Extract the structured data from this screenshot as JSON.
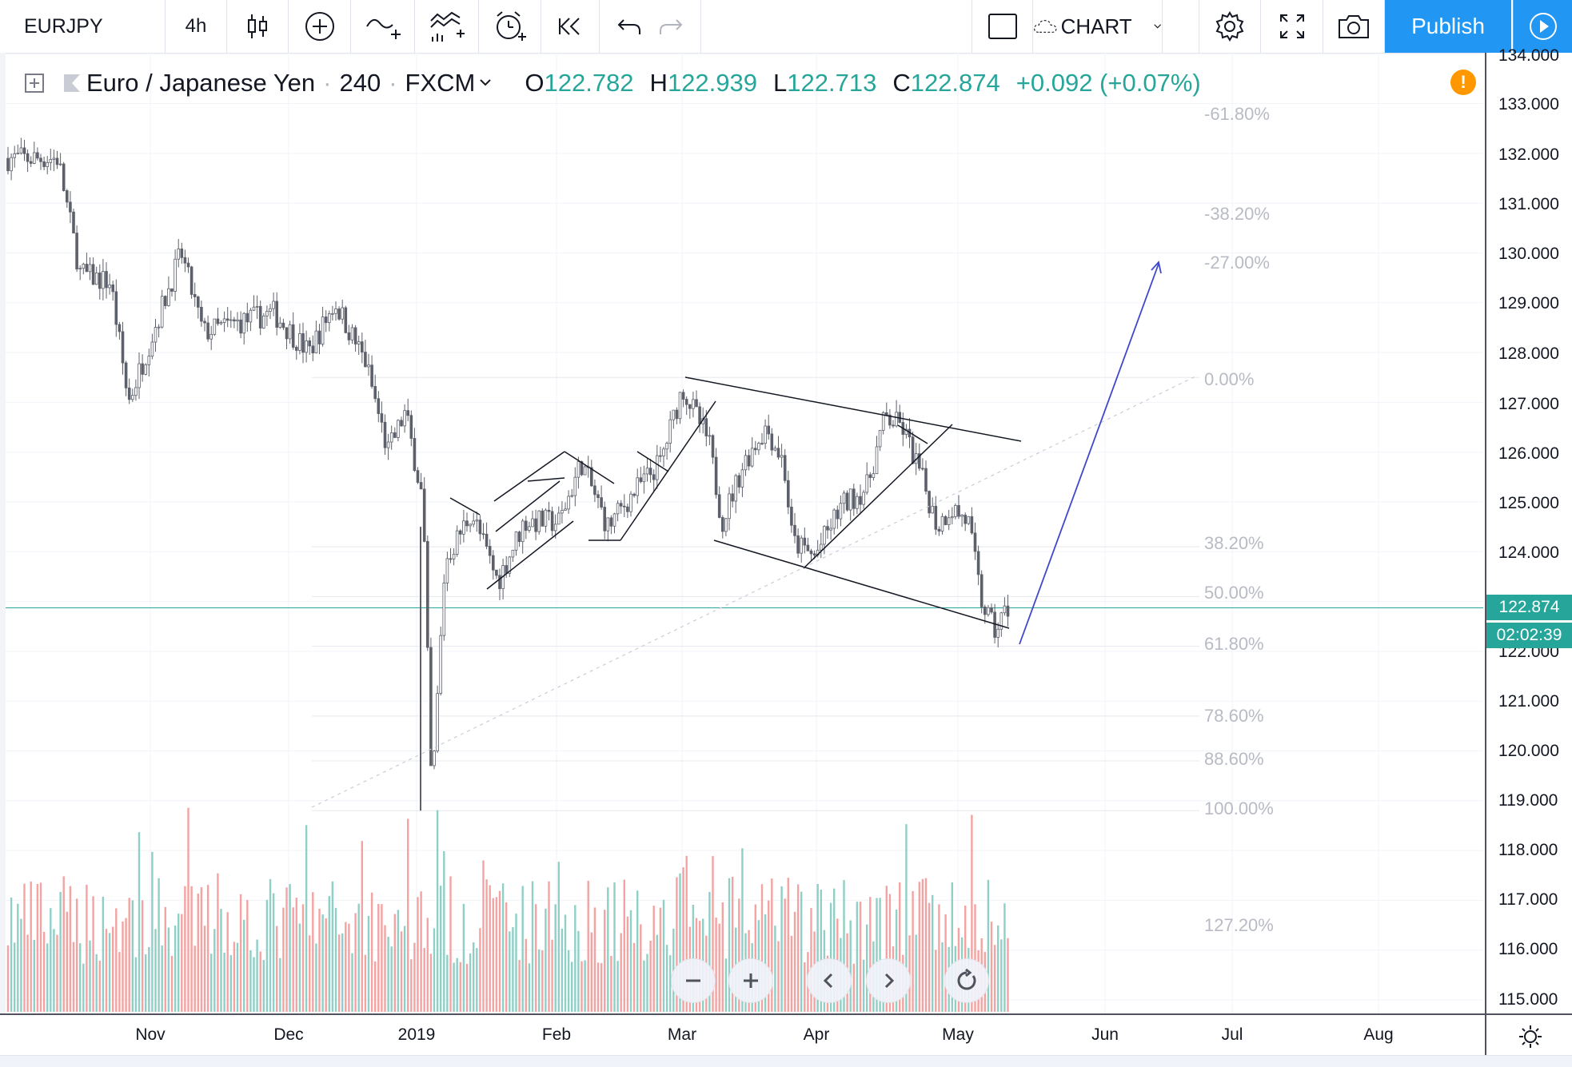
{
  "toolbar": {
    "symbol": "EURJPY",
    "interval": "4h",
    "layout_label": "CHART",
    "publish_label": "Publish"
  },
  "legend": {
    "title": "Euro / Japanese Yen",
    "interval": "240",
    "exchange": "FXCM",
    "open_label": "O",
    "open": "122.782",
    "high_label": "H",
    "high": "122.939",
    "low_label": "L",
    "low": "122.713",
    "close_label": "C",
    "close": "122.874",
    "change": "+0.092 (+0.07%)"
  },
  "price_axis": [
    "134.000",
    "133.000",
    "132.000",
    "131.000",
    "130.000",
    "129.000",
    "128.000",
    "127.000",
    "126.000",
    "125.000",
    "124.000",
    "123.000",
    "122.000",
    "121.000",
    "120.000",
    "119.000",
    "118.000",
    "117.000",
    "116.000",
    "115.000"
  ],
  "time_axis": [
    "Nov",
    "Dec",
    "2019",
    "Feb",
    "Mar",
    "Apr",
    "May",
    "Jun",
    "Jul",
    "Aug"
  ],
  "fib_levels": [
    "-61.80%",
    "-38.20%",
    "-27.00%",
    "0.00%",
    "38.20%",
    "50.00%",
    "61.80%",
    "78.60%",
    "88.60%",
    "100.00%",
    "127.20%"
  ],
  "last_price_tag": "122.874",
  "countdown_tag": "02:02:39",
  "colors": {
    "accent": "#2196f3",
    "up": "#26a69a",
    "down": "#ef5350",
    "volume_up": "#8fcfc6",
    "volume_down": "#f3a3a1",
    "alert": "#ff9800",
    "projection_arrow": "#3f48cc"
  },
  "icons": [
    "candles-icon",
    "plus-circle-icon",
    "indicators-icon",
    "templates-icon",
    "alert-clock-icon",
    "replay-icon",
    "undo-icon",
    "redo-icon",
    "layout-square-icon",
    "cloud-icon",
    "gear-icon",
    "fullscreen-icon",
    "camera-icon",
    "play-icon",
    "zoom-out-icon",
    "zoom-in-icon",
    "scroll-left-icon",
    "scroll-right-icon",
    "reset-icon",
    "settings-sun-icon"
  ],
  "chart_data": {
    "type": "candlestick",
    "symbol": "EURJPY",
    "ylim": [
      115,
      134
    ],
    "x_ticks": [
      "Nov",
      "Dec",
      "2019",
      "Feb",
      "Mar",
      "Apr",
      "May",
      "Jun",
      "Jul",
      "Aug"
    ],
    "price_path": [
      {
        "date": "2018-10-10",
        "price": 131.9
      },
      {
        "date": "2018-10-15",
        "price": 129.6
      },
      {
        "date": "2018-10-22",
        "price": 129.4
      },
      {
        "date": "2018-10-26",
        "price": 127.0
      },
      {
        "date": "2018-11-01",
        "price": 128.5
      },
      {
        "date": "2018-11-07",
        "price": 130.0
      },
      {
        "date": "2018-11-12",
        "price": 128.4
      },
      {
        "date": "2018-11-20",
        "price": 128.6
      },
      {
        "date": "2018-11-28",
        "price": 128.8
      },
      {
        "date": "2018-12-06",
        "price": 128.0
      },
      {
        "date": "2018-12-12",
        "price": 129.0
      },
      {
        "date": "2018-12-19",
        "price": 127.8
      },
      {
        "date": "2018-12-24",
        "price": 126.0
      },
      {
        "date": "2018-12-28",
        "price": 126.8
      },
      {
        "date": "2019-01-01",
        "price": 125.0
      },
      {
        "date": "2019-01-03",
        "price": 119.0
      },
      {
        "date": "2019-01-06",
        "price": 123.8
      },
      {
        "date": "2019-01-12",
        "price": 124.8
      },
      {
        "date": "2019-01-18",
        "price": 123.4
      },
      {
        "date": "2019-01-24",
        "price": 124.6
      },
      {
        "date": "2019-02-01",
        "price": 124.6
      },
      {
        "date": "2019-02-06",
        "price": 125.8
      },
      {
        "date": "2019-02-12",
        "price": 124.5
      },
      {
        "date": "2019-02-18",
        "price": 125.2
      },
      {
        "date": "2019-02-24",
        "price": 125.8
      },
      {
        "date": "2019-03-01",
        "price": 127.3
      },
      {
        "date": "2019-03-07",
        "price": 126.2
      },
      {
        "date": "2019-03-10",
        "price": 124.6
      },
      {
        "date": "2019-03-15",
        "price": 125.8
      },
      {
        "date": "2019-03-20",
        "price": 126.5
      },
      {
        "date": "2019-03-24",
        "price": 125.8
      },
      {
        "date": "2019-03-26",
        "price": 124.2
      },
      {
        "date": "2019-03-31",
        "price": 123.9
      },
      {
        "date": "2019-04-06",
        "price": 124.9
      },
      {
        "date": "2019-04-12",
        "price": 125.3
      },
      {
        "date": "2019-04-16",
        "price": 126.7
      },
      {
        "date": "2019-04-20",
        "price": 126.5
      },
      {
        "date": "2019-04-24",
        "price": 125.6
      },
      {
        "date": "2019-04-28",
        "price": 124.5
      },
      {
        "date": "2019-05-01",
        "price": 124.9
      },
      {
        "date": "2019-05-05",
        "price": 124.6
      },
      {
        "date": "2019-05-08",
        "price": 123.0
      },
      {
        "date": "2019-05-11",
        "price": 122.4
      },
      {
        "date": "2019-05-14",
        "price": 122.874
      }
    ],
    "last_close": 122.874,
    "fib_retracement": {
      "0.00%": 127.5,
      "38.20%": 124.1,
      "50.00%": 123.1,
      "61.80%": 122.1,
      "78.60%": 120.7,
      "88.60%": 119.8,
      "100.00%": 118.8
    }
  }
}
